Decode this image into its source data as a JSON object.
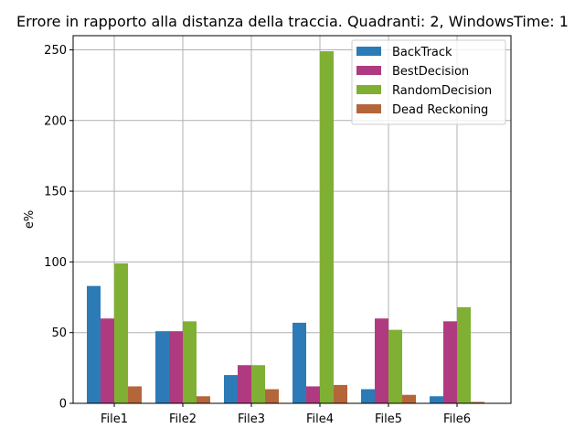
{
  "chart_data": {
    "type": "bar",
    "title": "Errore in rapporto alla distanza della traccia. Quadranti: 2, WindowsTime: 1",
    "xlabel": "",
    "ylabel": "e%",
    "categories": [
      "File1",
      "File2",
      "File3",
      "File4",
      "File5",
      "File6"
    ],
    "series": [
      {
        "name": "BackTrack",
        "color": "#2c7bb6",
        "values": [
          83,
          51,
          20,
          57,
          10,
          5
        ]
      },
      {
        "name": "BestDecision",
        "color": "#b03a80",
        "values": [
          60,
          51,
          27,
          12,
          60,
          58
        ]
      },
      {
        "name": "RandomDecision",
        "color": "#7fb034",
        "values": [
          99,
          58,
          27,
          249,
          52,
          68
        ]
      },
      {
        "name": "Dead Reckoning",
        "color": "#b5653a",
        "values": [
          12,
          5,
          10,
          13,
          6,
          1
        ]
      }
    ],
    "ylim": [
      0,
      260
    ],
    "yticks": [
      0,
      50,
      100,
      150,
      200,
      250
    ],
    "grid": true,
    "legend_position": "top-right"
  }
}
